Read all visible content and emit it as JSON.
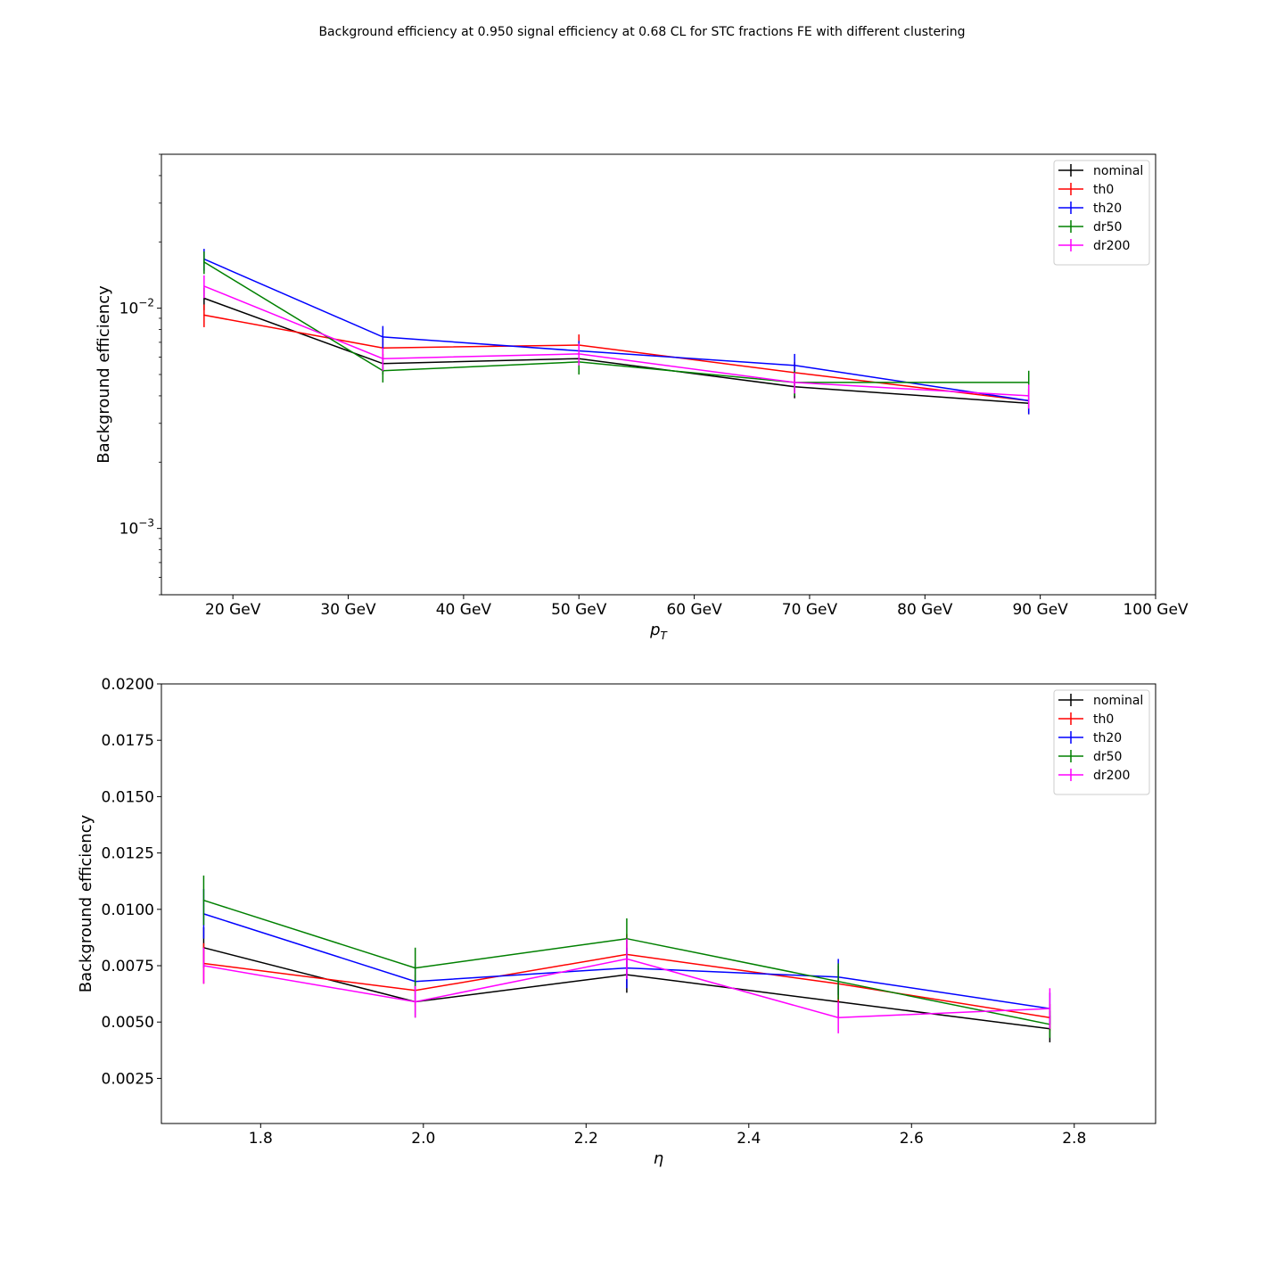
{
  "figure": {
    "suptitle": "Background efficiency at 0.950 signal efficiency at 0.68 CL for STC fractions FE with different clustering"
  },
  "chart_data": [
    {
      "type": "line",
      "title": "",
      "xlabel": "p_T",
      "ylabel": "Background efficiency",
      "yscale": "log",
      "xlim": [
        13.8,
        100
      ],
      "ylim": [
        0.0005,
        0.05
      ],
      "xticks": [
        20,
        30,
        40,
        50,
        60,
        70,
        80,
        90,
        100
      ],
      "xtick_labels": [
        "20 GeV",
        "30 GeV",
        "40 GeV",
        "50 GeV",
        "60 GeV",
        "70 GeV",
        "80 GeV",
        "90 GeV",
        "100 GeV"
      ],
      "yticks": [
        0.01,
        0.001
      ],
      "ytick_labels": [
        {
          "base": "10",
          "exp": "−2"
        },
        {
          "base": "10",
          "exp": "−3"
        }
      ],
      "x": [
        17.5,
        33,
        50,
        68.7,
        89
      ],
      "legend_position": "upper right",
      "grid": false,
      "series": [
        {
          "name": "nominal",
          "color": "#000000",
          "values": [
            0.0111,
            0.0056,
            0.0059,
            0.0044,
            0.0037
          ],
          "errors": [
            0.0013,
            0.0006,
            0.0007,
            0.0005,
            0.0004
          ]
        },
        {
          "name": "th0",
          "color": "#ff0000",
          "values": [
            0.0093,
            0.0066,
            0.0068,
            0.0051,
            0.0038
          ],
          "errors": [
            0.0011,
            0.0007,
            0.0008,
            0.0006,
            0.0005
          ]
        },
        {
          "name": "th20",
          "color": "#0000ff",
          "values": [
            0.0167,
            0.0074,
            0.0064,
            0.0055,
            0.0038
          ],
          "errors": [
            0.0019,
            0.0009,
            0.0007,
            0.0007,
            0.0005
          ]
        },
        {
          "name": "dr50",
          "color": "#008000",
          "values": [
            0.0162,
            0.0052,
            0.0057,
            0.0046,
            0.0046
          ],
          "errors": [
            0.0019,
            0.0006,
            0.0007,
            0.0006,
            0.0006
          ]
        },
        {
          "name": "dr200",
          "color": "#ff00ff",
          "values": [
            0.0126,
            0.0059,
            0.0062,
            0.0046,
            0.004
          ],
          "errors": [
            0.0015,
            0.0007,
            0.0007,
            0.0005,
            0.0005
          ]
        }
      ]
    },
    {
      "type": "line",
      "title": "",
      "xlabel": "η",
      "ylabel": "Background efficiency",
      "yscale": "linear",
      "xlim": [
        1.678,
        2.9
      ],
      "ylim": [
        0.0005,
        0.02
      ],
      "xticks": [
        1.8,
        2.0,
        2.2,
        2.4,
        2.6,
        2.8
      ],
      "xtick_labels": [
        "1.8",
        "2.0",
        "2.2",
        "2.4",
        "2.6",
        "2.8"
      ],
      "yticks": [
        0.0025,
        0.005,
        0.0075,
        0.01,
        0.0125,
        0.015,
        0.0175,
        0.02
      ],
      "ytick_labels": [
        "0.0025",
        "0.0050",
        "0.0075",
        "0.0100",
        "0.0125",
        "0.0150",
        "0.0175",
        "0.0200"
      ],
      "x": [
        1.73,
        1.99,
        2.25,
        2.51,
        2.77
      ],
      "legend_position": "upper right",
      "grid": false,
      "series": [
        {
          "name": "nominal",
          "color": "#000000",
          "values": [
            0.0083,
            0.0059,
            0.0071,
            0.0059,
            0.0047
          ],
          "errors": [
            0.0009,
            0.0007,
            0.0008,
            0.0007,
            0.0006
          ]
        },
        {
          "name": "th0",
          "color": "#ff0000",
          "values": [
            0.0076,
            0.0064,
            0.008,
            0.0067,
            0.0052
          ],
          "errors": [
            0.0009,
            0.0007,
            0.0009,
            0.0008,
            0.0006
          ]
        },
        {
          "name": "th20",
          "color": "#0000ff",
          "values": [
            0.0098,
            0.0068,
            0.0074,
            0.007,
            0.0056
          ],
          "errors": [
            0.0011,
            0.0008,
            0.0009,
            0.0008,
            0.0007
          ]
        },
        {
          "name": "dr50",
          "color": "#008000",
          "values": [
            0.0104,
            0.0074,
            0.0087,
            0.0068,
            0.0049
          ],
          "errors": [
            0.0011,
            0.0009,
            0.0009,
            0.0008,
            0.0006
          ]
        },
        {
          "name": "dr200",
          "color": "#ff00ff",
          "values": [
            0.0075,
            0.0059,
            0.0078,
            0.0052,
            0.0056
          ],
          "errors": [
            0.0008,
            0.0007,
            0.0009,
            0.0007,
            0.0009
          ]
        }
      ]
    }
  ]
}
